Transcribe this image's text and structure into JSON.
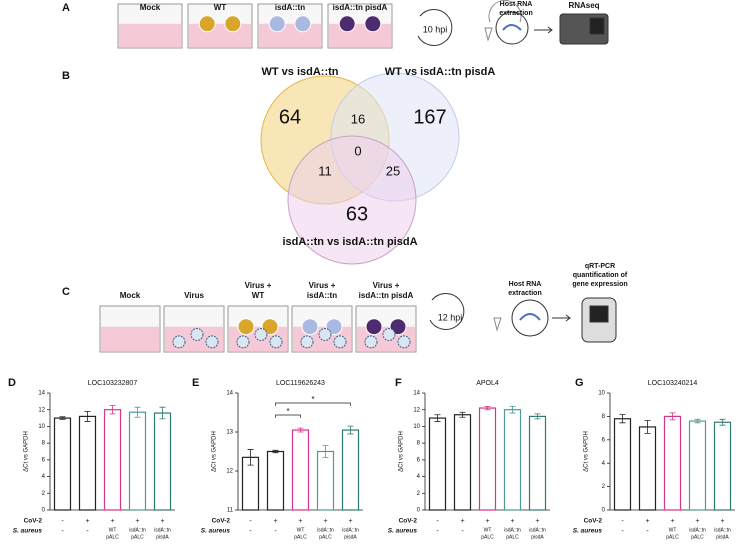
{
  "panel_labels": [
    "A",
    "B",
    "C",
    "D",
    "E",
    "F",
    "G"
  ],
  "panel_a": {
    "wells": [
      [
        "Mock"
      ],
      [
        "WT"
      ],
      [
        "isdA::tn"
      ],
      [
        "isdA::tn pisdA"
      ]
    ],
    "timepoint": "10 hpi",
    "extraction": [
      "Host RNA",
      "extraction"
    ],
    "readout": [
      "RNAseq"
    ]
  },
  "venn": {
    "sets": [
      "WT vs isdA::tn",
      "WT vs isdA::tn pisdA",
      "isdA::tn vs isdA::tn pisdA"
    ],
    "regions": [
      64,
      167,
      63,
      16,
      11,
      25,
      0
    ]
  },
  "panel_c": {
    "wells": [
      [
        "Mock"
      ],
      [
        "Virus"
      ],
      [
        "Virus +",
        "WT"
      ],
      [
        "Virus +",
        "isdA::tn"
      ],
      [
        "Virus +",
        "isdA::tn pisdA"
      ]
    ],
    "timepoint": "12 hpi",
    "extraction": [
      "Host RNA",
      "extraction"
    ],
    "readout": [
      "qRT-PCR",
      "quantification of",
      "gene expression"
    ]
  },
  "chart_data": [
    {
      "type": "bar",
      "title": "LOC103232807",
      "ylabel": "ΔCt vs GAPDH",
      "ylim": [
        0,
        14
      ],
      "yticks": [
        0,
        2,
        4,
        6,
        8,
        10,
        12,
        14
      ],
      "values": [
        11,
        11.2,
        12,
        11.7,
        11.6
      ],
      "errors": [
        0.15,
        0.6,
        0.5,
        0.6,
        0.7
      ],
      "colors": [
        "#222222",
        "#222222",
        "#d6338a",
        "#4f9a92",
        "#2f7a72"
      ],
      "conditions": [
        {
          "name": "CoV-2",
          "labels": [
            [
              "-"
            ],
            [
              "+"
            ],
            [
              "+"
            ],
            [
              "+"
            ],
            [
              "+"
            ]
          ]
        },
        {
          "name": "S. aureus",
          "labels": [
            [
              "-"
            ],
            [
              "-"
            ],
            [
              "WT",
              "pALC"
            ],
            [
              "isdA::tn",
              "pALC"
            ],
            [
              "isdA::tn",
              "pisdA"
            ]
          ]
        }
      ],
      "significance": []
    },
    {
      "type": "bar",
      "title": "LOC119626243",
      "ylabel": "ΔCt vs GAPDH",
      "ylim": [
        11,
        14
      ],
      "yticks": [
        11,
        12,
        13,
        14
      ],
      "values": [
        12.35,
        12.5,
        13.05,
        12.5,
        13.05
      ],
      "errors": [
        0.2,
        0.03,
        0.05,
        0.15,
        0.1
      ],
      "colors": [
        "#222222",
        "#222222",
        "#d6338a",
        "#4f9a92",
        "#2f7a72"
      ],
      "conditions": [
        {
          "name": "CoV-2",
          "labels": [
            [
              "-"
            ],
            [
              "+"
            ],
            [
              "+"
            ],
            [
              "+"
            ],
            [
              "+"
            ]
          ]
        },
        {
          "name": "S. aureus",
          "labels": [
            [
              "-"
            ],
            [
              "-"
            ],
            [
              "WT",
              "pALC"
            ],
            [
              "isdA::tn",
              "pALC"
            ],
            [
              "isdA::tn",
              "pisdA"
            ]
          ]
        }
      ],
      "significance": [
        "*",
        "*"
      ]
    },
    {
      "type": "bar",
      "title": "APOL4",
      "ylabel": "ΔCt vs GAPDH",
      "ylim": [
        0,
        14
      ],
      "yticks": [
        0,
        2,
        4,
        6,
        8,
        10,
        12,
        14
      ],
      "values": [
        11,
        11.4,
        12.2,
        12,
        11.2
      ],
      "errors": [
        0.4,
        0.3,
        0.2,
        0.4,
        0.3
      ],
      "colors": [
        "#222222",
        "#222222",
        "#d6338a",
        "#4f9a92",
        "#2f7a72"
      ],
      "conditions": [
        {
          "name": "CoV-2",
          "labels": [
            [
              "-"
            ],
            [
              "+"
            ],
            [
              "+"
            ],
            [
              "+"
            ],
            [
              "+"
            ]
          ]
        },
        {
          "name": "S. aureus",
          "labels": [
            [
              "-"
            ],
            [
              "-"
            ],
            [
              "WT",
              "pALC"
            ],
            [
              "isdA::tn",
              "pALC"
            ],
            [
              "isdA::tn",
              "pisdA"
            ]
          ]
        }
      ],
      "significance": []
    },
    {
      "type": "bar",
      "title": "LOC103240214",
      "ylabel": "ΔCt vs GAPDH",
      "ylim": [
        0,
        10
      ],
      "yticks": [
        0,
        2,
        4,
        6,
        8,
        10
      ],
      "values": [
        7.8,
        7.1,
        8,
        7.6,
        7.5
      ],
      "errors": [
        0.35,
        0.55,
        0.3,
        0.15,
        0.25
      ],
      "colors": [
        "#222222",
        "#222222",
        "#d6338a",
        "#4f9a92",
        "#2f7a72"
      ],
      "conditions": [
        {
          "name": "CoV-2",
          "labels": [
            [
              "-"
            ],
            [
              "+"
            ],
            [
              "+"
            ],
            [
              "+"
            ],
            [
              "+"
            ]
          ]
        },
        {
          "name": "S. aureus",
          "labels": [
            [
              "-"
            ],
            [
              "-"
            ],
            [
              "WT",
              "pALC"
            ],
            [
              "isdA::tn",
              "pALC"
            ],
            [
              "isdA::tn",
              "pisdA"
            ]
          ]
        }
      ],
      "significance": []
    }
  ]
}
